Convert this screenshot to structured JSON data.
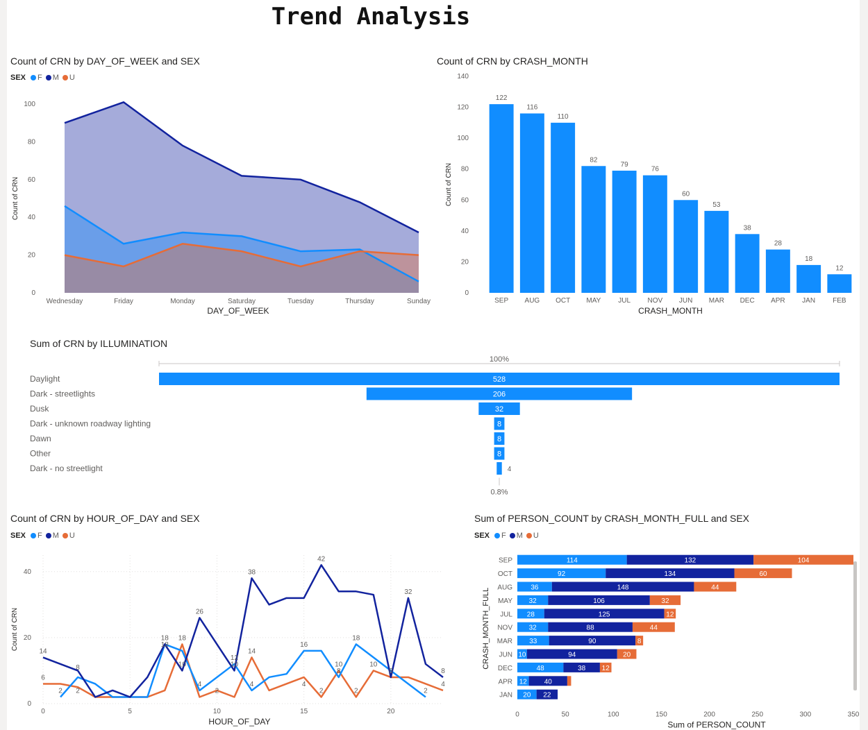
{
  "page": {
    "title": "Trend Analysis"
  },
  "colors": {
    "F": "#118dff",
    "M": "#12239e",
    "U": "#e66c37",
    "bar": "#118dff"
  },
  "legend": {
    "label": "SEX",
    "items": [
      "F",
      "M",
      "U"
    ]
  },
  "visuals": {
    "dow": {
      "title": "Count of CRN by DAY_OF_WEEK and SEX"
    },
    "month": {
      "title": "Count of CRN by CRASH_MONTH"
    },
    "illum": {
      "title": "Sum of CRN by ILLUMINATION"
    },
    "hour": {
      "title": "Count of CRN by HOUR_OF_DAY and SEX"
    },
    "person": {
      "title": "Sum of PERSON_COUNT by CRASH_MONTH_FULL and SEX"
    }
  },
  "chart_data": [
    {
      "id": "dow",
      "type": "area",
      "title": "Count of CRN by DAY_OF_WEEK and SEX",
      "xlabel": "DAY_OF_WEEK",
      "ylabel": "Count of CRN",
      "categories": [
        "Wednesday",
        "Friday",
        "Monday",
        "Saturday",
        "Tuesday",
        "Thursday",
        "Sunday"
      ],
      "ylim": [
        0,
        100
      ],
      "yticks": [
        0,
        20,
        40,
        60,
        80,
        100
      ],
      "legend": "top-left",
      "series": [
        {
          "name": "M",
          "values": [
            90,
            101,
            78,
            62,
            60,
            48,
            32
          ]
        },
        {
          "name": "F",
          "values": [
            46,
            26,
            32,
            30,
            22,
            23,
            6
          ]
        },
        {
          "name": "U",
          "values": [
            20,
            14,
            26,
            22,
            14,
            22,
            20
          ]
        }
      ]
    },
    {
      "id": "month",
      "type": "bar",
      "title": "Count of CRN by CRASH_MONTH",
      "xlabel": "CRASH_MONTH",
      "ylabel": "Count of CRN",
      "categories": [
        "SEP",
        "AUG",
        "OCT",
        "MAY",
        "JUL",
        "NOV",
        "JUN",
        "MAR",
        "DEC",
        "APR",
        "JAN",
        "FEB"
      ],
      "values": [
        122,
        116,
        110,
        82,
        79,
        76,
        60,
        53,
        38,
        28,
        18,
        12
      ],
      "ylim": [
        0,
        140
      ],
      "yticks": [
        0,
        20,
        40,
        60,
        80,
        100,
        120,
        140
      ]
    },
    {
      "id": "illum",
      "type": "bar",
      "subtype": "funnel",
      "title": "Sum of CRN by ILLUMINATION",
      "categories": [
        "Daylight",
        "Dark - streetlights",
        "Dusk",
        "Dark - unknown roadway lighting",
        "Dawn",
        "Other",
        "Dark - no streetlight"
      ],
      "values": [
        528,
        206,
        32,
        8,
        8,
        8,
        4
      ],
      "top_pct_label": "100%",
      "bottom_pct_label": "0.8%"
    },
    {
      "id": "hour",
      "type": "line",
      "title": "Count of CRN by HOUR_OF_DAY and SEX",
      "xlabel": "HOUR_OF_DAY",
      "ylabel": "Count of CRN",
      "x": [
        0,
        1,
        2,
        3,
        4,
        5,
        6,
        7,
        8,
        9,
        10,
        11,
        12,
        13,
        14,
        15,
        16,
        17,
        18,
        19,
        20,
        21,
        22,
        23
      ],
      "xlim": [
        0,
        23
      ],
      "xticks": [
        0,
        5,
        10,
        15,
        20
      ],
      "ylim": [
        0,
        45
      ],
      "yticks": [
        0,
        20,
        40
      ],
      "legend": "top-left",
      "series": [
        {
          "name": "M",
          "values": [
            14,
            12,
            10,
            2,
            4,
            2,
            8,
            18,
            10,
            26,
            18,
            10,
            38,
            30,
            32,
            32,
            42,
            34,
            34,
            33,
            8,
            32,
            12,
            8
          ]
        },
        {
          "name": "F",
          "values": [
            null,
            2,
            8,
            6,
            2,
            2,
            2,
            18,
            16,
            4,
            8,
            12,
            4,
            8,
            9,
            16,
            16,
            8,
            18,
            14,
            10,
            6,
            2,
            null
          ]
        },
        {
          "name": "U",
          "values": [
            6,
            6,
            5,
            2,
            2,
            2,
            2,
            4,
            18,
            2,
            4,
            2,
            14,
            4,
            6,
            8,
            2,
            10,
            2,
            10,
            8,
            8,
            6,
            4
          ]
        }
      ],
      "data_labels": [
        {
          "x": 0,
          "y": 14,
          "text": "14"
        },
        {
          "x": 0,
          "y": 6,
          "text": "6"
        },
        {
          "x": 1,
          "y": 2,
          "text": "2"
        },
        {
          "x": 2,
          "y": 9,
          "text": "8"
        },
        {
          "x": 2,
          "y": 2,
          "text": "2"
        },
        {
          "x": 7,
          "y": 18,
          "text": "18"
        },
        {
          "x": 7,
          "y": 16,
          "text": "18"
        },
        {
          "x": 8,
          "y": 18,
          "text": "18"
        },
        {
          "x": 8,
          "y": 10,
          "text": "10"
        },
        {
          "x": 9,
          "y": 26,
          "text": "26"
        },
        {
          "x": 9,
          "y": 4,
          "text": "4"
        },
        {
          "x": 10,
          "y": 2,
          "text": "2"
        },
        {
          "x": 11,
          "y": 10,
          "text": "10"
        },
        {
          "x": 11,
          "y": 12,
          "text": "12"
        },
        {
          "x": 12,
          "y": 38,
          "text": "38"
        },
        {
          "x": 12,
          "y": 14,
          "text": "14"
        },
        {
          "x": 12,
          "y": 4,
          "text": "4"
        },
        {
          "x": 15,
          "y": 16,
          "text": "16"
        },
        {
          "x": 15,
          "y": 4,
          "text": "4"
        },
        {
          "x": 16,
          "y": 42,
          "text": "42"
        },
        {
          "x": 16,
          "y": 2,
          "text": "2"
        },
        {
          "x": 17,
          "y": 10,
          "text": "10"
        },
        {
          "x": 17,
          "y": 8,
          "text": "8"
        },
        {
          "x": 18,
          "y": 18,
          "text": "18"
        },
        {
          "x": 18,
          "y": 2,
          "text": "2"
        },
        {
          "x": 19,
          "y": 10,
          "text": "10"
        },
        {
          "x": 20,
          "y": 8,
          "text": "8"
        },
        {
          "x": 21,
          "y": 32,
          "text": "32"
        },
        {
          "x": 22,
          "y": 2,
          "text": "2"
        },
        {
          "x": 23,
          "y": 8,
          "text": "8"
        },
        {
          "x": 23,
          "y": 4,
          "text": "4"
        }
      ]
    },
    {
      "id": "person",
      "type": "bar",
      "orientation": "horizontal",
      "stacked": true,
      "title": "Sum of PERSON_COUNT by CRASH_MONTH_FULL and SEX",
      "xlabel": "Sum of PERSON_COUNT",
      "ylabel": "CRASH_MONTH_FULL",
      "categories": [
        "SEP",
        "OCT",
        "AUG",
        "MAY",
        "JUL",
        "NOV",
        "MAR",
        "JUN",
        "DEC",
        "APR",
        "JAN"
      ],
      "xlim": [
        0,
        350
      ],
      "xticks": [
        0,
        50,
        100,
        150,
        200,
        250,
        300,
        350
      ],
      "legend": "top-left",
      "series": [
        {
          "name": "F",
          "values": [
            114,
            92,
            36,
            32,
            28,
            32,
            33,
            10,
            48,
            12,
            20
          ]
        },
        {
          "name": "M",
          "values": [
            132,
            134,
            148,
            106,
            125,
            88,
            90,
            94,
            38,
            40,
            22
          ]
        },
        {
          "name": "U",
          "values": [
            104,
            60,
            44,
            32,
            12,
            44,
            8,
            20,
            12,
            4,
            0
          ]
        }
      ]
    }
  ]
}
